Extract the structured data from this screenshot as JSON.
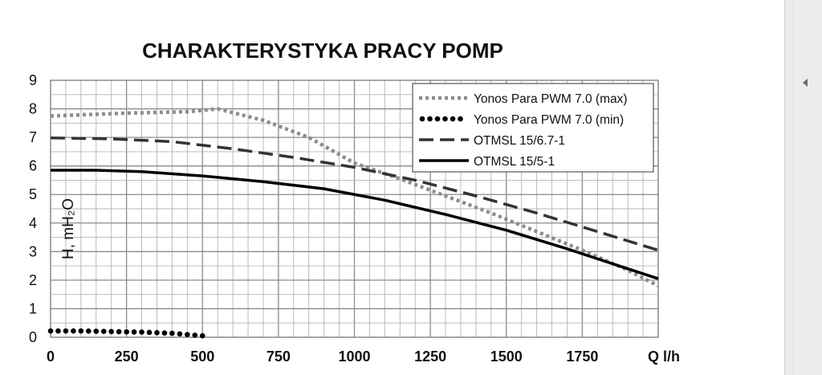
{
  "chart_data": {
    "type": "line",
    "title": "CHARAKTERYSTYKA PRACY POMP",
    "ylabel": "H, mH₂O",
    "xlabel": "Q l/h",
    "xlim": [
      0,
      2000
    ],
    "ylim": [
      0,
      9
    ],
    "x_ticks": [
      0,
      250,
      500,
      750,
      1000,
      1250,
      1500,
      1750
    ],
    "x_tick_labels": [
      "0",
      "250",
      "500",
      "750",
      "1000",
      "1250",
      "1500",
      "1750"
    ],
    "y_ticks": [
      0,
      1,
      2,
      3,
      4,
      5,
      6,
      7,
      8,
      9
    ],
    "y_tick_labels": [
      "0",
      "1",
      "2",
      "3",
      "4",
      "5",
      "6",
      "7",
      "8",
      "9"
    ],
    "grid": true,
    "legend_position": "top-right",
    "series": [
      {
        "name": "Yonos Para PWM 7.0 (max)",
        "style": "dotted",
        "color": "#8c8c8c",
        "x": [
          0,
          250,
          450,
          550,
          700,
          850,
          1000,
          1150,
          1300,
          1450,
          1600,
          1750,
          1900,
          2000
        ],
        "y": [
          7.75,
          7.85,
          7.9,
          8.0,
          7.6,
          7.0,
          6.1,
          5.55,
          4.95,
          4.35,
          3.7,
          3.05,
          2.35,
          1.8
        ]
      },
      {
        "name": "Yonos Para PWM 7.0 (min)",
        "style": "dots",
        "color": "#000000",
        "x": [
          0,
          100,
          200,
          300,
          400,
          500
        ],
        "y": [
          0.22,
          0.22,
          0.2,
          0.18,
          0.14,
          0.05
        ]
      },
      {
        "name": "OTMSL 15/6.7-1",
        "style": "dashed",
        "color": "#333333",
        "x": [
          0,
          200,
          400,
          600,
          800,
          1000,
          1200,
          1400,
          1600,
          1800,
          2000
        ],
        "y": [
          6.98,
          6.95,
          6.85,
          6.6,
          6.3,
          5.95,
          5.5,
          4.95,
          4.35,
          3.7,
          3.05
        ]
      },
      {
        "name": "OTMSL 15/5-1",
        "style": "solid",
        "color": "#000000",
        "x": [
          0,
          150,
          300,
          500,
          700,
          900,
          1100,
          1300,
          1500,
          1700,
          1900,
          2000
        ],
        "y": [
          5.85,
          5.85,
          5.8,
          5.65,
          5.45,
          5.2,
          4.8,
          4.3,
          3.75,
          3.1,
          2.4,
          2.05
        ]
      }
    ]
  },
  "ui": {
    "scrollbar_arrow_icon": "triangle-left-icon"
  }
}
